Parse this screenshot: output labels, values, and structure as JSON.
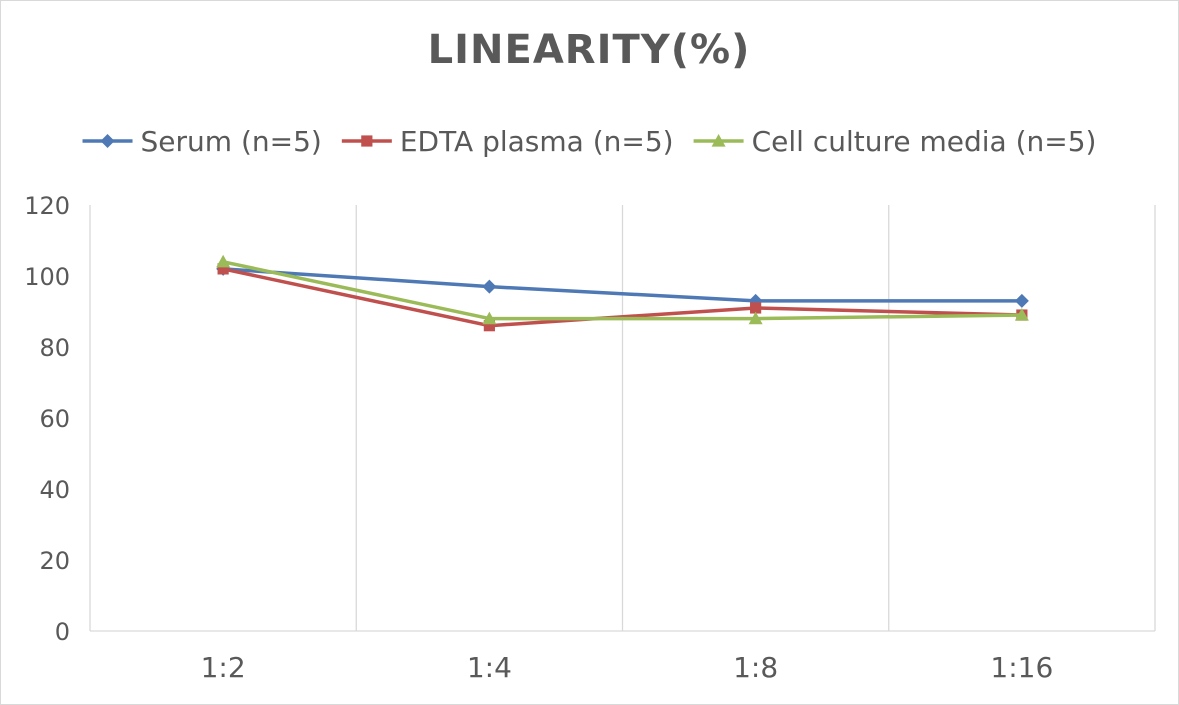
{
  "chart_data": {
    "type": "line",
    "title": "LINEARITY(%)",
    "categories": [
      "1:2",
      "1:4",
      "1:8",
      "1:16"
    ],
    "ylim": [
      0,
      120
    ],
    "yticks": [
      0,
      20,
      40,
      60,
      80,
      100,
      120
    ],
    "grid": "vertical",
    "legend_position": "top",
    "series": [
      {
        "name": "Serum (n=5)",
        "color": "#4e79b5",
        "marker": "diamond",
        "values": [
          102,
          97,
          93,
          93
        ]
      },
      {
        "name": "EDTA plasma (n=5)",
        "color": "#c0504d",
        "marker": "square",
        "values": [
          102,
          86,
          91,
          89
        ]
      },
      {
        "name": "Cell culture media (n=5)",
        "color": "#9bbb59",
        "marker": "triangle",
        "values": [
          104,
          88,
          88,
          89
        ]
      }
    ]
  }
}
